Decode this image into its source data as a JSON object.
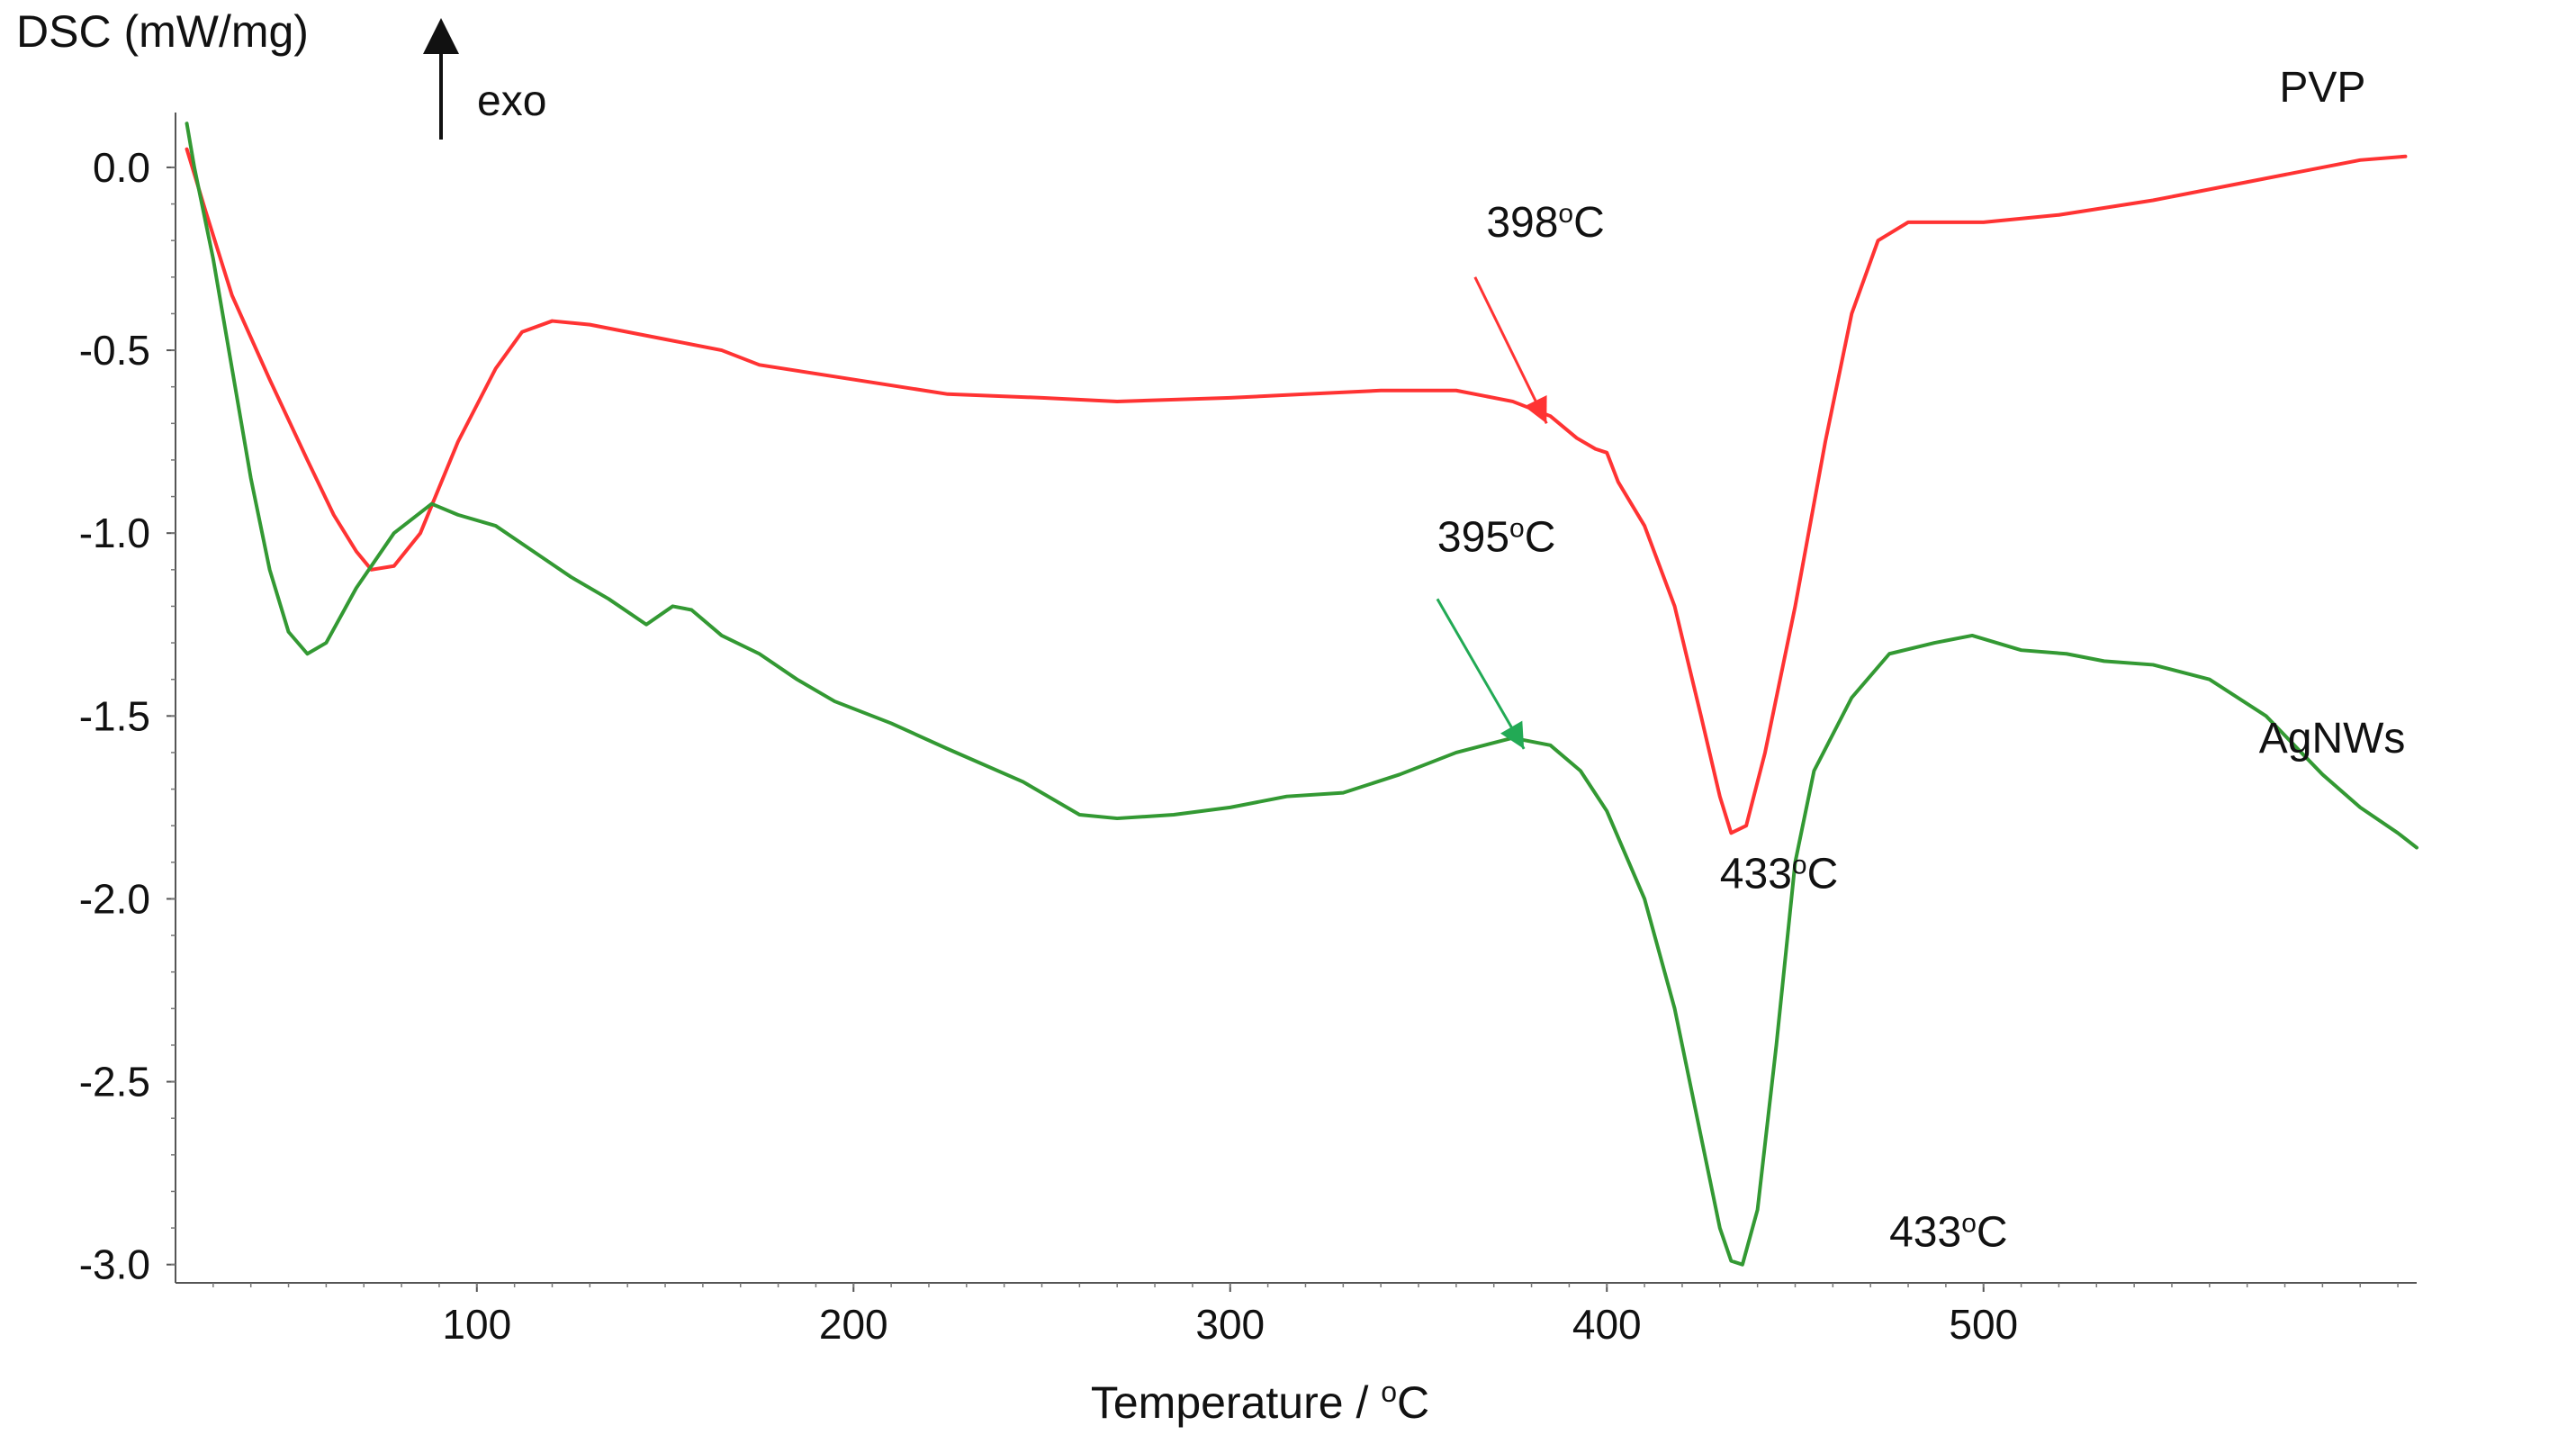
{
  "chart_data": {
    "type": "line",
    "ylabel": "DSC (mW/mg)",
    "xlabel_prefix": "Temperature / ",
    "xlabel_degree": "o",
    "xlabel_unit": "C",
    "exo_label": "exo",
    "xlim": [
      20,
      615
    ],
    "ylim": [
      -3.05,
      0.15
    ],
    "x_ticks": [
      100,
      200,
      300,
      400,
      500
    ],
    "y_ticks": [
      0.0,
      -0.5,
      -1.0,
      -1.5,
      -2.0,
      -2.5,
      -3.0
    ],
    "y_tick_labels": [
      "0.0",
      "-0.5",
      "-1.0",
      "-1.5",
      "-2.0",
      "-2.5",
      "-3.0"
    ],
    "series": [
      {
        "name": "PVP",
        "color": "#ff3333",
        "points": [
          [
            23,
            0.05
          ],
          [
            28,
            -0.12
          ],
          [
            35,
            -0.35
          ],
          [
            45,
            -0.58
          ],
          [
            55,
            -0.8
          ],
          [
            62,
            -0.95
          ],
          [
            68,
            -1.05
          ],
          [
            72,
            -1.1
          ],
          [
            78,
            -1.09
          ],
          [
            85,
            -1.0
          ],
          [
            95,
            -0.75
          ],
          [
            105,
            -0.55
          ],
          [
            112,
            -0.45
          ],
          [
            120,
            -0.42
          ],
          [
            130,
            -0.43
          ],
          [
            150,
            -0.47
          ],
          [
            165,
            -0.5
          ],
          [
            175,
            -0.54
          ],
          [
            200,
            -0.58
          ],
          [
            225,
            -0.62
          ],
          [
            250,
            -0.63
          ],
          [
            270,
            -0.64
          ],
          [
            300,
            -0.63
          ],
          [
            320,
            -0.62
          ],
          [
            340,
            -0.61
          ],
          [
            360,
            -0.61
          ],
          [
            375,
            -0.64
          ],
          [
            385,
            -0.68
          ],
          [
            392,
            -0.74
          ],
          [
            397,
            -0.77
          ],
          [
            400,
            -0.78
          ],
          [
            403,
            -0.86
          ],
          [
            410,
            -0.98
          ],
          [
            418,
            -1.2
          ],
          [
            425,
            -1.5
          ],
          [
            430,
            -1.72
          ],
          [
            433,
            -1.82
          ],
          [
            437,
            -1.8
          ],
          [
            442,
            -1.6
          ],
          [
            450,
            -1.2
          ],
          [
            458,
            -0.75
          ],
          [
            465,
            -0.4
          ],
          [
            472,
            -0.2
          ],
          [
            480,
            -0.15
          ],
          [
            500,
            -0.15
          ],
          [
            520,
            -0.13
          ],
          [
            545,
            -0.09
          ],
          [
            575,
            -0.03
          ],
          [
            600,
            0.02
          ],
          [
            612,
            0.03
          ]
        ]
      },
      {
        "name": "AgNWs",
        "color": "#339933",
        "points": [
          [
            23,
            0.12
          ],
          [
            25,
            0.0
          ],
          [
            30,
            -0.25
          ],
          [
            35,
            -0.55
          ],
          [
            40,
            -0.85
          ],
          [
            45,
            -1.1
          ],
          [
            50,
            -1.27
          ],
          [
            55,
            -1.33
          ],
          [
            60,
            -1.3
          ],
          [
            68,
            -1.15
          ],
          [
            78,
            -1.0
          ],
          [
            88,
            -0.92
          ],
          [
            95,
            -0.95
          ],
          [
            105,
            -0.98
          ],
          [
            115,
            -1.05
          ],
          [
            125,
            -1.12
          ],
          [
            135,
            -1.18
          ],
          [
            145,
            -1.25
          ],
          [
            152,
            -1.2
          ],
          [
            157,
            -1.21
          ],
          [
            165,
            -1.28
          ],
          [
            175,
            -1.33
          ],
          [
            185,
            -1.4
          ],
          [
            195,
            -1.46
          ],
          [
            210,
            -1.52
          ],
          [
            225,
            -1.59
          ],
          [
            245,
            -1.68
          ],
          [
            260,
            -1.77
          ],
          [
            270,
            -1.78
          ],
          [
            285,
            -1.77
          ],
          [
            300,
            -1.75
          ],
          [
            315,
            -1.72
          ],
          [
            330,
            -1.71
          ],
          [
            345,
            -1.66
          ],
          [
            360,
            -1.6
          ],
          [
            375,
            -1.56
          ],
          [
            385,
            -1.58
          ],
          [
            393,
            -1.65
          ],
          [
            400,
            -1.76
          ],
          [
            410,
            -2.0
          ],
          [
            418,
            -2.3
          ],
          [
            425,
            -2.65
          ],
          [
            430,
            -2.9
          ],
          [
            433,
            -2.99
          ],
          [
            436,
            -3.0
          ],
          [
            440,
            -2.85
          ],
          [
            445,
            -2.4
          ],
          [
            450,
            -1.9
          ],
          [
            455,
            -1.65
          ],
          [
            465,
            -1.45
          ],
          [
            475,
            -1.33
          ],
          [
            487,
            -1.3
          ],
          [
            497,
            -1.28
          ],
          [
            510,
            -1.32
          ],
          [
            522,
            -1.33
          ],
          [
            532,
            -1.35
          ],
          [
            545,
            -1.36
          ],
          [
            560,
            -1.4
          ],
          [
            575,
            -1.5
          ],
          [
            590,
            -1.66
          ],
          [
            600,
            -1.75
          ],
          [
            610,
            -1.82
          ],
          [
            615,
            -1.86
          ]
        ]
      }
    ],
    "series_labels": [
      {
        "text": "PVP",
        "x": 590,
        "y": 0.18,
        "anchor": "middle",
        "color": "#111111"
      },
      {
        "text": "AgNWs",
        "x": 612,
        "y": -1.6,
        "anchor": "end",
        "color": "#111111"
      }
    ],
    "annotations": [
      {
        "series": "PVP",
        "value": "398",
        "degree": "o",
        "unit": "C",
        "text_x": 368,
        "text_y": -0.19,
        "arrow_from": [
          365,
          -0.3
        ],
        "arrow_to": [
          384,
          -0.7
        ],
        "color": "#ff3333"
      },
      {
        "series": "AgNWs",
        "value": "395",
        "degree": "o",
        "unit": "C",
        "text_x": 355,
        "text_y": -1.05,
        "arrow_from": [
          355,
          -1.18
        ],
        "arrow_to": [
          378,
          -1.59
        ],
        "color": "#22aa55"
      },
      {
        "series": "PVP",
        "value": "433",
        "degree": "o",
        "unit": "C",
        "text_x": 430,
        "text_y": -1.97,
        "arrow_from": null,
        "arrow_to": null,
        "color": "#111111"
      },
      {
        "series": "AgNWs",
        "value": "433",
        "degree": "o",
        "unit": "C",
        "text_x": 475,
        "text_y": -2.95,
        "arrow_from": null,
        "arrow_to": null,
        "color": "#111111"
      }
    ]
  }
}
